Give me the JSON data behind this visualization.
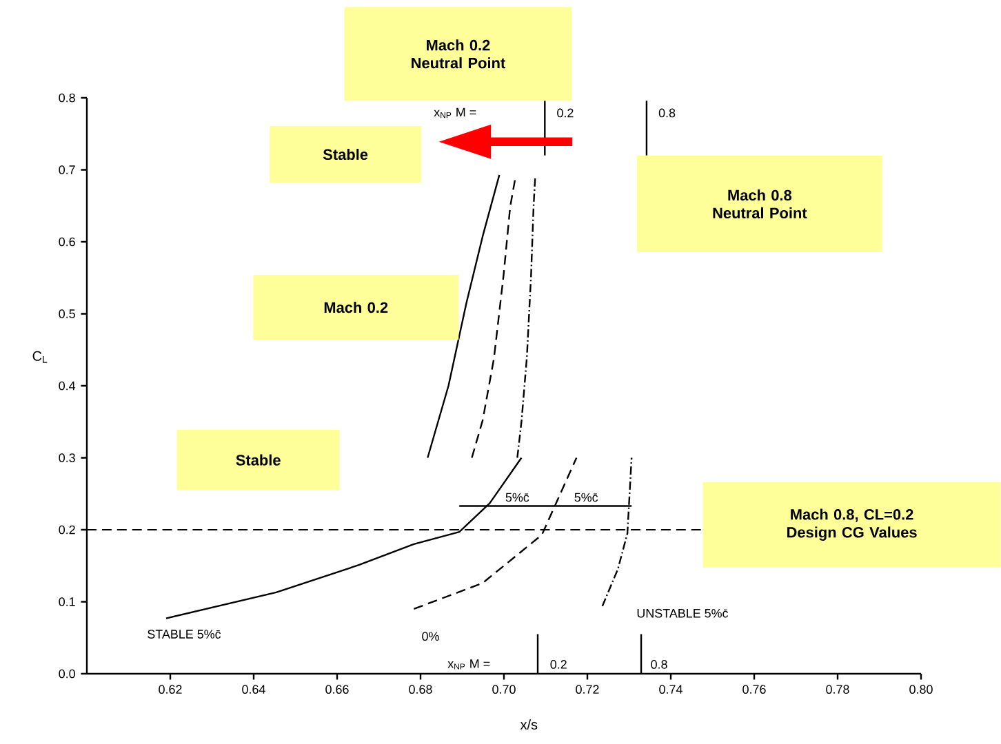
{
  "chart_data": {
    "type": "line",
    "xlabel": "x/s",
    "ylabel": "C$_{L}$",
    "xlim": [
      0.6,
      0.8
    ],
    "ylim": [
      0,
      0.8
    ],
    "xticks": [
      {
        "value": 0.62,
        "label": "0.62"
      },
      {
        "value": 0.64,
        "label": "0.64"
      },
      {
        "value": 0.66,
        "label": "0.66"
      },
      {
        "value": 0.68,
        "label": "0.68"
      },
      {
        "value": 0.7,
        "label": "0.70"
      },
      {
        "value": 0.72,
        "label": "0.72"
      },
      {
        "value": 0.74,
        "label": "0.74"
      },
      {
        "value": 0.76,
        "label": "0.76"
      },
      {
        "value": 0.78,
        "label": "0.78"
      },
      {
        "value": 0.8,
        "label": "0.80"
      }
    ],
    "yticks": [
      {
        "value": 0,
        "label": "0.0"
      },
      {
        "value": 0.1,
        "label": "0.1"
      },
      {
        "value": 0.2,
        "label": "0.2"
      },
      {
        "value": 0.3,
        "label": "0.3"
      },
      {
        "value": 0.4,
        "label": "0.4"
      },
      {
        "value": 0.5,
        "label": "0.5"
      },
      {
        "value": 0.6,
        "label": "0.6"
      },
      {
        "value": 0.7,
        "label": "0.7"
      },
      {
        "value": 0.8,
        "label": "0.8"
      }
    ],
    "series": [
      {
        "type": "line",
        "color": "#000000",
        "line_style": "solid",
        "x": [
          0.6817,
          0.6867,
          0.691,
          0.695,
          0.6989
        ],
        "values": [
          0.3,
          0.4,
          0.515,
          0.61,
          0.693
        ]
      },
      {
        "type": "line",
        "color": "#000000",
        "line_style": "dashed",
        "x": [
          0.6923,
          0.6949,
          0.6976,
          0.6999,
          0.7015,
          0.7028
        ],
        "values": [
          0.3,
          0.352,
          0.438,
          0.553,
          0.649,
          0.691
        ]
      },
      {
        "type": "line",
        "color": "#000000",
        "line_style": "dashdot",
        "x": [
          0.7032,
          0.7042,
          0.7055,
          0.7065,
          0.7071,
          0.7075
        ],
        "values": [
          0.3,
          0.35,
          0.44,
          0.553,
          0.649,
          0.691
        ]
      },
      {
        "type": "line",
        "color": "#000000",
        "line_style": "solid",
        "x": [
          0.619,
          0.6454,
          0.6652,
          0.6784,
          0.6893,
          0.6966,
          0.7042
        ],
        "values": [
          0.077,
          0.113,
          0.151,
          0.18,
          0.197,
          0.237,
          0.3
        ]
      },
      {
        "type": "line",
        "color": "#000000",
        "line_style": "dashed",
        "x": [
          0.6784,
          0.6949,
          0.7091,
          0.7174
        ],
        "values": [
          0.09,
          0.126,
          0.193,
          0.3
        ]
      },
      {
        "type": "line",
        "color": "#000000",
        "line_style": "dashdot",
        "x": [
          0.7236,
          0.7273,
          0.7296,
          0.7306
        ],
        "values": [
          0.094,
          0.145,
          0.195,
          0.3
        ]
      },
      {
        "type": "line",
        "color": "#000000",
        "line_style": "solid",
        "x": [
          0.6893,
          0.7085,
          0.7306
        ],
        "values": [
          0.233,
          0.233,
          0.233
        ]
      },
      {
        "type": "line",
        "color": "#000000",
        "line_style": "solid",
        "x": [
          0.7098,
          0.7098
        ],
        "values": [
          0.72,
          0.796
        ]
      },
      {
        "type": "line",
        "color": "#000000",
        "line_style": "solid",
        "x": [
          0.7342,
          0.7342
        ],
        "values": [
          0.72,
          0.796
        ]
      },
      {
        "type": "line",
        "color": "#000000",
        "line_style": "solid",
        "x": [
          0.7081,
          0.7081
        ],
        "values": [
          0,
          0.055
        ]
      },
      {
        "type": "line",
        "color": "#000000",
        "line_style": "solid",
        "x": [
          0.7329,
          0.7329
        ],
        "values": [
          0,
          0.055
        ]
      }
    ],
    "ref_lines": [
      {
        "axis": "y",
        "value": 0.2,
        "line_style": "dashed",
        "color": "#000000"
      }
    ],
    "annotations": [
      "Mach 0.2 Neutral Point",
      "Stable",
      "Mach 0.8 Neutral Point",
      "Mach 0.2",
      "Stable",
      "Mach 0.8, CL=0.2 Design CG Values",
      "STABLE 5%c̄",
      "0%",
      "UNSTABLE 5%c̄",
      "5%c̄",
      "5%c̄",
      "x$_{NP}$ M =",
      "0.2",
      "0.8",
      "x$_{NP}$ M =",
      "0.2",
      "0.8"
    ]
  }
}
